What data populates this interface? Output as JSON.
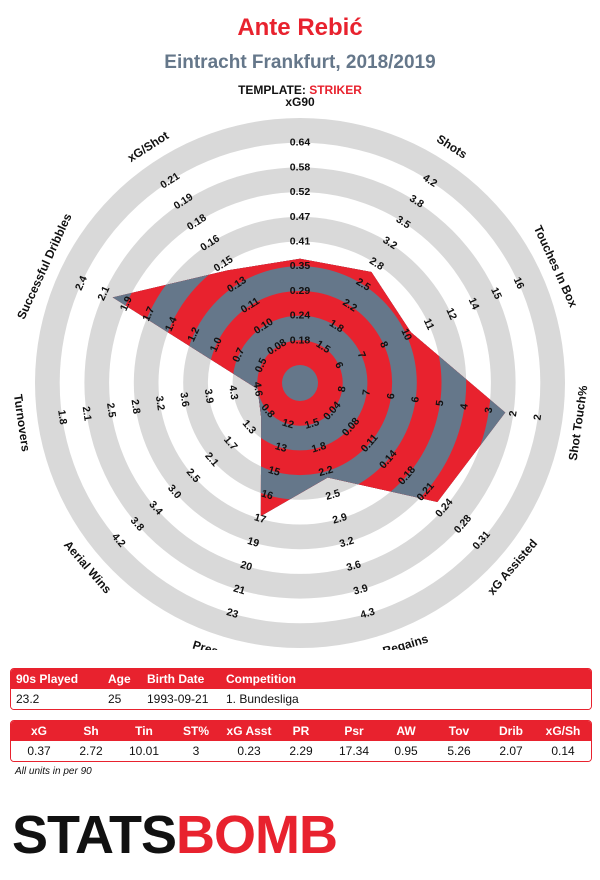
{
  "header": {
    "title": "Ante Rebić",
    "subtitle": "Eintracht Frankfurt, 2018/2019",
    "template_label": "TEMPLATE:",
    "template_value": "STRIKER"
  },
  "colors": {
    "red": "#e8222e",
    "slate": "#65778a",
    "ring_grey": "#d9d9d9",
    "text": "#111111"
  },
  "chart_data": {
    "type": "radar",
    "grid": "concentric rings",
    "axes": [
      {
        "label": "xG90",
        "ticks": [
          "0.18",
          "0.24",
          "0.29",
          "0.35",
          "0.41",
          "0.47",
          "0.52",
          "0.58",
          "0.64"
        ],
        "value": 0.37
      },
      {
        "label": "Shots",
        "ticks": [
          "1.5",
          "1.8",
          "2.2",
          "2.5",
          "2.8",
          "3.2",
          "3.5",
          "3.8",
          "4.2"
        ],
        "value": 2.72
      },
      {
        "label": "Touches In Box",
        "ticks": [
          "6",
          "7",
          "8",
          "10",
          "11",
          "12",
          "14",
          "15",
          "16"
        ],
        "value": 10.01
      },
      {
        "label": "Shot Touch%",
        "ticks": [
          "8",
          "7",
          "6",
          "6",
          "5",
          "4",
          "3",
          "2",
          "2"
        ],
        "value": 3
      },
      {
        "label": "xG Assisted",
        "ticks": [
          "0.04",
          "0.08",
          "0.11",
          "0.14",
          "0.18",
          "0.21",
          "0.24",
          "0.28",
          "0.31"
        ],
        "value": 0.23
      },
      {
        "label": "Pressure Regains",
        "ticks": [
          "1.5",
          "1.8",
          "2.2",
          "2.5",
          "2.9",
          "3.2",
          "3.6",
          "3.9",
          "4.3"
        ],
        "value": 2.29
      },
      {
        "label": "Pressures",
        "ticks": [
          "12",
          "13",
          "15",
          "16",
          "17",
          "19",
          "20",
          "21",
          "23"
        ],
        "value": 17.34
      },
      {
        "label": "Aerial Wins",
        "ticks": [
          "0.8",
          "1.3",
          "1.7",
          "2.1",
          "2.5",
          "3.0",
          "3.4",
          "3.8",
          "4.2"
        ],
        "value": 0.95
      },
      {
        "label": "Turnovers",
        "ticks": [
          "4.6",
          "4.3",
          "3.9",
          "3.6",
          "3.2",
          "2.8",
          "2.5",
          "2.1",
          "1.8"
        ],
        "value": 5.26
      },
      {
        "label": "Successful Dribbles",
        "ticks": [
          "0.5",
          "0.7",
          "1.0",
          "1.2",
          "1.4",
          "1.7",
          "1.9",
          "2.1",
          "2.4"
        ],
        "value": 2.07
      },
      {
        "label": "xG/Shot",
        "ticks": [
          "0.08",
          "0.10",
          "0.11",
          "0.13",
          "0.15",
          "0.16",
          "0.18",
          "0.19",
          "0.21"
        ],
        "value": 0.14
      }
    ]
  },
  "info_table": {
    "headers": [
      "90s Played",
      "Age",
      "Birth Date",
      "Competition"
    ],
    "values": [
      "23.2",
      "25",
      "1993-09-21",
      "1. Bundesliga"
    ]
  },
  "stats_table": {
    "headers": [
      "xG",
      "Sh",
      "Tin",
      "ST%",
      "xG Asst",
      "PR",
      "Psr",
      "AW",
      "Tov",
      "Drib",
      "xG/Sh"
    ],
    "values": [
      "0.37",
      "2.72",
      "10.01",
      "3",
      "0.23",
      "2.29",
      "17.34",
      "0.95",
      "5.26",
      "2.07",
      "0.14"
    ]
  },
  "footer": {
    "note": "All units in per 90",
    "logo_part1": "STATS",
    "logo_part2": "BOMB"
  }
}
